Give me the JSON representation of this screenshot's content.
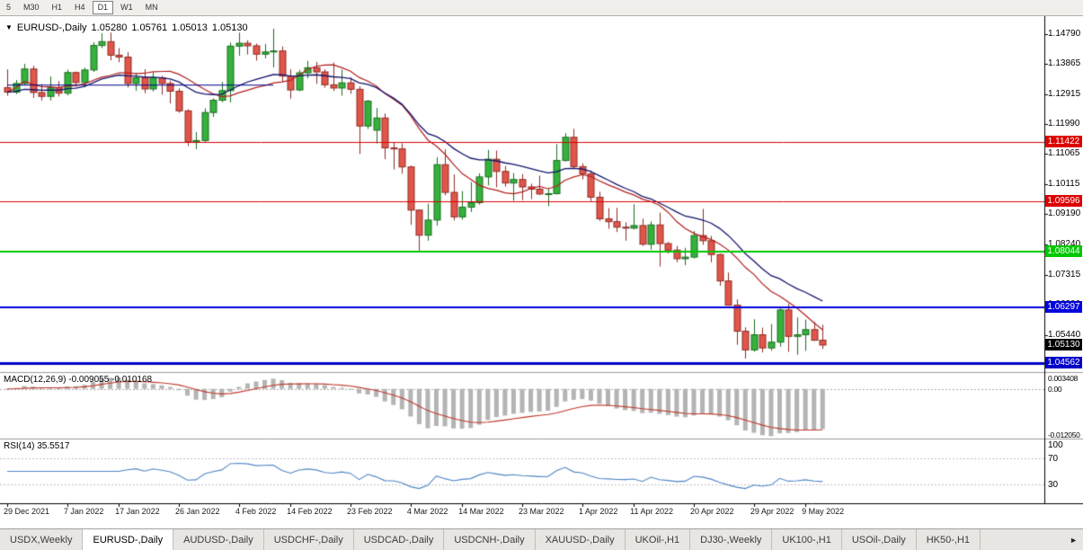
{
  "toolbar": {
    "timeframes": [
      {
        "label": "5",
        "active": false
      },
      {
        "label": "M30",
        "active": false
      },
      {
        "label": "H1",
        "active": false
      },
      {
        "label": "H4",
        "active": false
      },
      {
        "label": "D1",
        "active": true
      },
      {
        "label": "W1",
        "active": false
      },
      {
        "label": "MN",
        "active": false
      }
    ]
  },
  "chart_header": {
    "dropdown_icon": "▼",
    "symbol": "EURUSD-,Daily",
    "open": "1.05280",
    "high": "1.05761",
    "low": "1.05013",
    "close": "1.05130"
  },
  "chart_data": {
    "type": "candlestick",
    "title": "EURUSD-,Daily",
    "ylim": [
      1.0432,
      1.1534
    ],
    "up_color": "#35b13c",
    "up_border": "#1b6e20",
    "down_color": "#e0564a",
    "down_border": "#8f2d26",
    "ma_fast": {
      "type": "sma",
      "period": 13,
      "color": "#b41f1f"
    },
    "ma_slow": {
      "type": "ema",
      "period": 21,
      "color": "#13136e"
    },
    "y_axis_labels": [
      "1.14790",
      "1.13865",
      "1.12915",
      "1.11990",
      "1.11065",
      "1.10115",
      "1.09190",
      "1.08240",
      "1.07315",
      "1.06390",
      "1.05440"
    ],
    "x_labels": [
      {
        "text": "29 Dec 2021",
        "i": 0
      },
      {
        "text": "7 Jan 2022",
        "i": 7
      },
      {
        "text": "17 Jan 2022",
        "i": 13
      },
      {
        "text": "26 Jan 2022",
        "i": 20
      },
      {
        "text": "4 Feb 2022",
        "i": 27
      },
      {
        "text": "14 Feb 2022",
        "i": 33
      },
      {
        "text": "23 Feb 2022",
        "i": 40
      },
      {
        "text": "4 Mar 2022",
        "i": 47
      },
      {
        "text": "14 Mar 2022",
        "i": 53
      },
      {
        "text": "23 Mar 2022",
        "i": 60
      },
      {
        "text": "1 Apr 2022",
        "i": 67
      },
      {
        "text": "11 Apr 2022",
        "i": 73
      },
      {
        "text": "20 Apr 2022",
        "i": 80
      },
      {
        "text": "29 Apr 2022",
        "i": 87
      },
      {
        "text": "9 May 2022",
        "i": 93
      }
    ],
    "hlines": [
      {
        "price": 1.11422,
        "label": "1.11422",
        "color": "#dd0000",
        "width": 1
      },
      {
        "price": 1.09596,
        "label": "1.09596",
        "color": "#dd0000",
        "width": 1
      },
      {
        "price": 1.08044,
        "label": "1.08044",
        "color": "#00c800",
        "width": 2
      },
      {
        "price": 1.06297,
        "label": "1.06297",
        "color": "#0000dc",
        "width": 2
      },
      {
        "price": 1.04562,
        "label": "1.04562",
        "color": "#0000c8",
        "width": 3
      }
    ],
    "price_tag": {
      "label": "1.05130",
      "color": "#000000"
    },
    "trend_segment": {
      "price": 1.132,
      "from": 0,
      "to": 31,
      "color": "#00008b",
      "width": 1
    },
    "candles": [
      [
        1.1312,
        1.1369,
        1.1287,
        1.1298
      ],
      [
        1.1298,
        1.1336,
        1.1292,
        1.1325
      ],
      [
        1.1325,
        1.1386,
        1.1319,
        1.137
      ],
      [
        1.137,
        1.138,
        1.128,
        1.1297
      ],
      [
        1.1297,
        1.1323,
        1.1272,
        1.1285
      ],
      [
        1.1285,
        1.1347,
        1.1272,
        1.1312
      ],
      [
        1.1312,
        1.1332,
        1.1285,
        1.1295
      ],
      [
        1.1295,
        1.1368,
        1.1288,
        1.1359
      ],
      [
        1.1359,
        1.1362,
        1.1315,
        1.1328
      ],
      [
        1.1328,
        1.1374,
        1.1313,
        1.1367
      ],
      [
        1.1367,
        1.1453,
        1.1361,
        1.1443
      ],
      [
        1.1443,
        1.1481,
        1.1435,
        1.1455
      ],
      [
        1.1455,
        1.1483,
        1.1397,
        1.1413
      ],
      [
        1.1413,
        1.1435,
        1.1391,
        1.1407
      ],
      [
        1.1407,
        1.1422,
        1.1313,
        1.1325
      ],
      [
        1.1325,
        1.1358,
        1.1302,
        1.1343
      ],
      [
        1.1343,
        1.1369,
        1.1295,
        1.1308
      ],
      [
        1.1308,
        1.136,
        1.13,
        1.1343
      ],
      [
        1.1343,
        1.1349,
        1.129,
        1.1325
      ],
      [
        1.1325,
        1.1334,
        1.1263,
        1.1301
      ],
      [
        1.1301,
        1.131,
        1.1234,
        1.124
      ],
      [
        1.124,
        1.1245,
        1.1131,
        1.1144
      ],
      [
        1.1144,
        1.1174,
        1.1121,
        1.1148
      ],
      [
        1.1148,
        1.1248,
        1.1141,
        1.1235
      ],
      [
        1.1235,
        1.1279,
        1.1221,
        1.1273
      ],
      [
        1.1273,
        1.133,
        1.1267,
        1.1303
      ],
      [
        1.1303,
        1.1452,
        1.1266,
        1.1441
      ],
      [
        1.1441,
        1.1483,
        1.1411,
        1.145
      ],
      [
        1.145,
        1.1459,
        1.1415,
        1.1442
      ],
      [
        1.1442,
        1.1449,
        1.1396,
        1.1416
      ],
      [
        1.1416,
        1.1448,
        1.1403,
        1.1423
      ],
      [
        1.1423,
        1.1495,
        1.1375,
        1.1426
      ],
      [
        1.1426,
        1.144,
        1.133,
        1.1348
      ],
      [
        1.1348,
        1.1369,
        1.1278,
        1.1305
      ],
      [
        1.1305,
        1.1367,
        1.1301,
        1.1358
      ],
      [
        1.1358,
        1.1395,
        1.1341,
        1.1374
      ],
      [
        1.1374,
        1.1392,
        1.1324,
        1.1361
      ],
      [
        1.1361,
        1.1369,
        1.1312,
        1.1321
      ],
      [
        1.1321,
        1.139,
        1.1302,
        1.1311
      ],
      [
        1.1311,
        1.1368,
        1.1287,
        1.1327
      ],
      [
        1.1327,
        1.1344,
        1.1293,
        1.1307
      ],
      [
        1.1307,
        1.1316,
        1.1106,
        1.1193
      ],
      [
        1.1193,
        1.1274,
        1.1184,
        1.127
      ],
      [
        1.118,
        1.1249,
        1.1139,
        1.1218
      ],
      [
        1.1218,
        1.1232,
        1.109,
        1.1125
      ],
      [
        1.1125,
        1.1143,
        1.1058,
        1.1122
      ],
      [
        1.1122,
        1.1139,
        1.1045,
        1.1066
      ],
      [
        1.1066,
        1.107,
        1.0886,
        1.0932
      ],
      [
        1.0932,
        1.0934,
        1.0806,
        1.0854
      ],
      [
        1.0854,
        1.0952,
        1.0837,
        1.0901
      ],
      [
        1.0901,
        1.1096,
        1.0884,
        1.1073
      ],
      [
        1.1073,
        1.1121,
        1.0978,
        1.0987
      ],
      [
        1.0987,
        1.1043,
        1.09,
        1.0911
      ],
      [
        1.0911,
        1.0991,
        1.0902,
        1.0941
      ],
      [
        1.0941,
        1.1019,
        1.0926,
        1.0955
      ],
      [
        1.0955,
        1.1046,
        1.0949,
        1.1035
      ],
      [
        1.1035,
        1.1119,
        1.1009,
        1.109
      ],
      [
        1.109,
        1.1117,
        1.1003,
        1.1052
      ],
      [
        1.1052,
        1.1069,
        1.1005,
        1.1016
      ],
      [
        1.1016,
        1.1047,
        1.0961,
        1.1027
      ],
      [
        1.1027,
        1.1044,
        1.0963,
        1.1004
      ],
      [
        1.1004,
        1.1014,
        1.0966,
        1.0997
      ],
      [
        1.0997,
        1.1039,
        1.0979,
        1.0982
      ],
      [
        1.0982,
        1.0999,
        1.0944,
        1.0983
      ],
      [
        1.0983,
        1.1137,
        1.0981,
        1.1086
      ],
      [
        1.1086,
        1.1171,
        1.1083,
        1.1158
      ],
      [
        1.1158,
        1.1184,
        1.1061,
        1.1067
      ],
      [
        1.1067,
        1.1077,
        1.1027,
        1.1044
      ],
      [
        1.1044,
        1.1055,
        1.096,
        1.0972
      ],
      [
        1.0972,
        1.0989,
        1.0898,
        1.0905
      ],
      [
        1.0905,
        1.0938,
        1.0874,
        1.0896
      ],
      [
        1.0896,
        1.0939,
        1.0864,
        1.0879
      ],
      [
        1.0879,
        1.0894,
        1.0837,
        1.0876
      ],
      [
        1.0876,
        1.095,
        1.0872,
        1.0884
      ],
      [
        1.0884,
        1.0905,
        1.0821,
        1.0826
      ],
      [
        1.0826,
        1.0897,
        1.0809,
        1.0886
      ],
      [
        1.0886,
        1.0924,
        1.0757,
        1.0828
      ],
      [
        1.0828,
        1.0833,
        1.0797,
        1.0808
      ],
      [
        1.0808,
        1.0821,
        1.077,
        1.0781
      ],
      [
        1.0781,
        1.0815,
        1.0761,
        1.0786
      ],
      [
        1.0786,
        1.0867,
        1.0782,
        1.0853
      ],
      [
        1.0853,
        1.0936,
        1.0824,
        1.0837
      ],
      [
        1.0837,
        1.0852,
        1.077,
        1.0794
      ],
      [
        1.0794,
        1.0797,
        1.0697,
        1.0712
      ],
      [
        1.0712,
        1.0738,
        1.0635,
        1.0637
      ],
      [
        1.0637,
        1.0655,
        1.0514,
        1.0556
      ],
      [
        1.0556,
        1.0568,
        1.0471,
        1.0498
      ],
      [
        1.0498,
        1.0593,
        1.0492,
        1.0545
      ],
      [
        1.0545,
        1.0567,
        1.049,
        1.0504
      ],
      [
        1.0504,
        1.0578,
        1.0495,
        1.0522
      ],
      [
        1.0522,
        1.0631,
        1.0508,
        1.0622
      ],
      [
        1.0622,
        1.0642,
        1.0492,
        1.054
      ],
      [
        1.054,
        1.0599,
        1.0483,
        1.0545
      ],
      [
        1.0545,
        1.0592,
        1.0495,
        1.0561
      ],
      [
        1.0561,
        1.0585,
        1.0526,
        1.0528
      ],
      [
        1.0528,
        1.0576,
        1.0501,
        1.0513
      ]
    ]
  },
  "macd": {
    "title": "MACD(12,26,9) -0.009055 -0.010168",
    "fast": 12,
    "slow": 26,
    "signal": 9,
    "values": [
      "-0.009055",
      "-0.010168"
    ],
    "axis_labels": [
      {
        "text": "0.003408",
        "value": 0.003408
      },
      {
        "text": "0.00",
        "value": 0
      },
      {
        "text": "-0.012050",
        "value": -0.01205
      }
    ],
    "ylim": [
      -0.01205,
      0.003408
    ],
    "histogram_color": "#b4b4b4",
    "signal_color": "#c0382b"
  },
  "rsi": {
    "title": "RSI(14) 35.5517",
    "period": 14,
    "value": "35.5517",
    "axis_labels": [
      {
        "text": "100",
        "value": 100
      },
      {
        "text": "70",
        "value": 70
      },
      {
        "text": "30",
        "value": 30
      }
    ],
    "levels": [
      70,
      30
    ],
    "ylim": [
      0,
      100
    ],
    "line_color": "#4f86c6"
  },
  "tabs": {
    "items": [
      {
        "label": "USDX,Weekly",
        "active": false
      },
      {
        "label": "EURUSD-,Daily",
        "active": true
      },
      {
        "label": "AUDUSD-,Daily",
        "active": false
      },
      {
        "label": "USDCHF-,Daily",
        "active": false
      },
      {
        "label": "USDCAD-,Daily",
        "active": false
      },
      {
        "label": "USDCNH-,Daily",
        "active": false
      },
      {
        "label": "XAUUSD-,Daily",
        "active": false
      },
      {
        "label": "UKOil-,H1",
        "active": false
      },
      {
        "label": "DJ30-,Weekly",
        "active": false
      },
      {
        "label": "UK100-,H1",
        "active": false
      },
      {
        "label": "USOil-,Daily",
        "active": false
      },
      {
        "label": "HK50-,H1",
        "active": false
      }
    ],
    "scroll_right": "►"
  }
}
